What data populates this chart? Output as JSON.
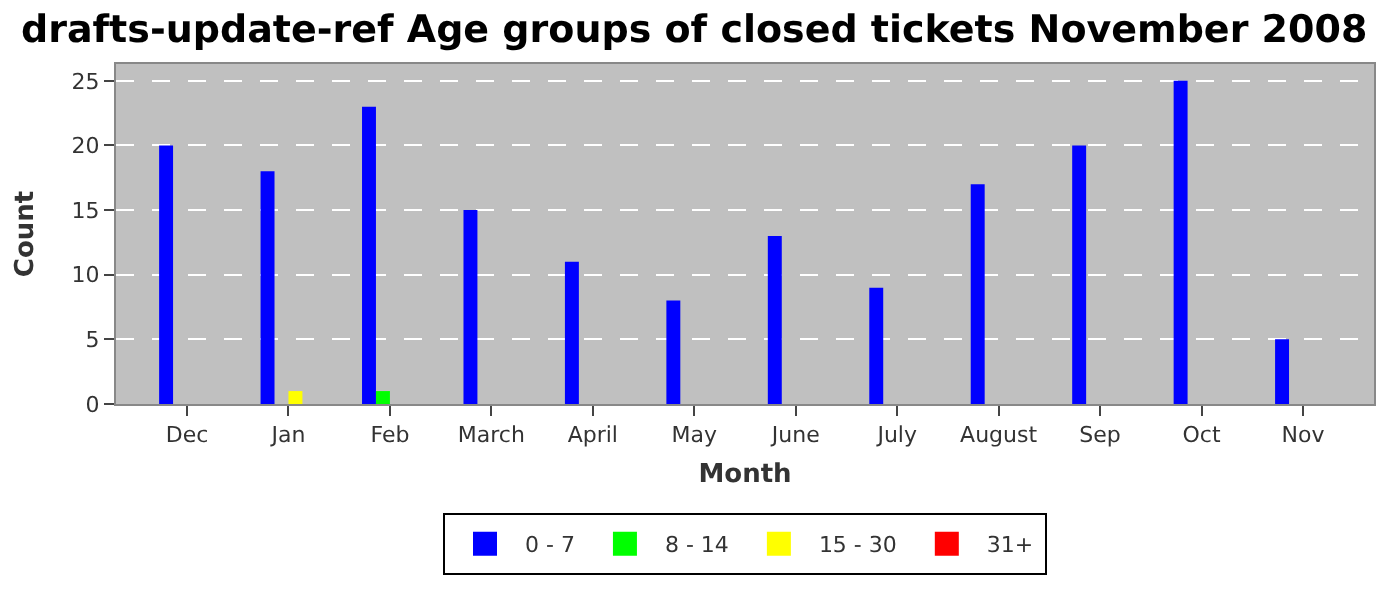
{
  "chart_data": {
    "type": "bar",
    "title": "drafts-update-ref Age groups of closed tickets November 2008",
    "xlabel": "Month",
    "ylabel": "Count",
    "categories": [
      "Dec",
      "Jan",
      "Feb",
      "March",
      "April",
      "May",
      "June",
      "July",
      "August",
      "Sep",
      "Oct",
      "Nov"
    ],
    "series": [
      {
        "name": "0 - 7",
        "color": "#0000ff",
        "values": [
          20,
          18,
          23,
          15,
          11,
          8,
          13,
          9,
          17,
          20,
          25,
          5
        ]
      },
      {
        "name": "8 - 14",
        "color": "#00ff00",
        "values": [
          0,
          0,
          1,
          0,
          0,
          0,
          0,
          0,
          0,
          0,
          0,
          0
        ]
      },
      {
        "name": "15 - 30",
        "color": "#ffff00",
        "values": [
          0,
          1,
          0,
          0,
          0,
          0,
          0,
          0,
          0,
          0,
          0,
          0
        ]
      },
      {
        "name": "31+",
        "color": "#ff0000",
        "values": [
          0,
          0,
          0,
          0,
          0,
          0,
          0,
          0,
          0,
          0,
          0,
          0
        ]
      }
    ],
    "ylim": [
      0,
      26.3
    ],
    "yticks": [
      0,
      5,
      10,
      15,
      20,
      25
    ],
    "grid": "y",
    "legend": "bottom"
  }
}
